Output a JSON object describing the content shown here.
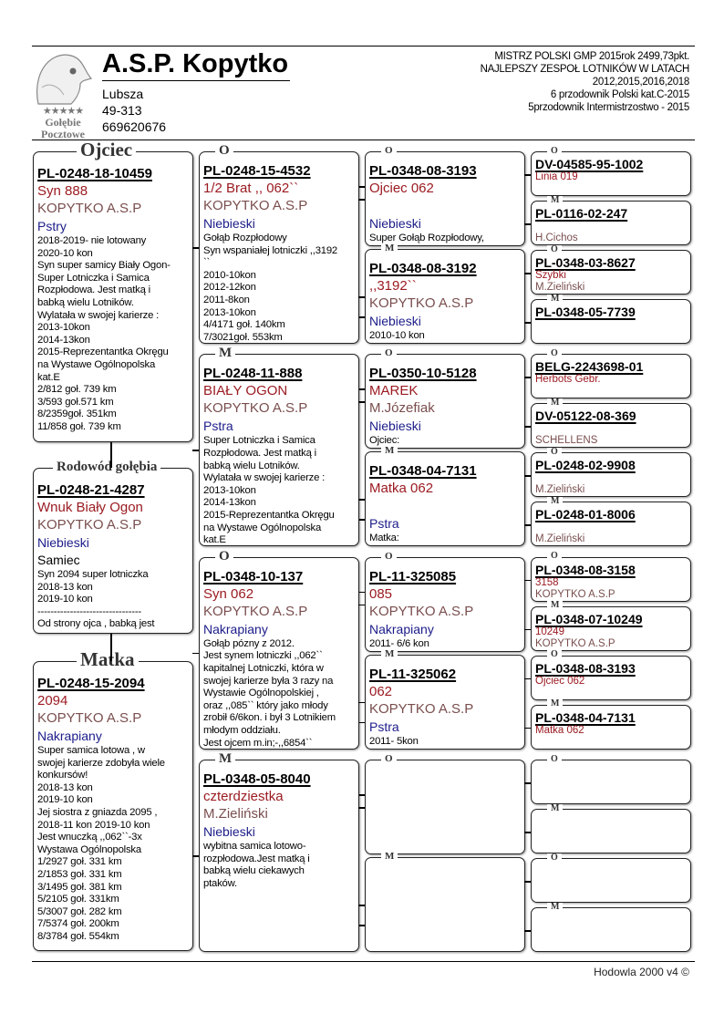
{
  "header": {
    "title": "A.S.P. Kopytko",
    "address": [
      "Lubsza",
      "49-313",
      "669620676"
    ],
    "achievements": [
      "MISTRZ POLSKI GMP 2015rok 2499,73pkt.",
      "NAJLEPSZY ZESPOŁ LOTNIKÓW W LATACH",
      "2012,2015,2016,2018",
      "6 przodownik Polski kat.C-2015",
      "5przodownik Intermistrzostwo - 2015"
    ]
  },
  "logo": {
    "stars": "★★★★★",
    "line1": "Gołębie",
    "line2": "Pocztowe"
  },
  "col1": [
    {
      "label": "Ojciec",
      "ring": "PL-0248-18-10459",
      "name": "Syn 888",
      "owner": "KOPYTKO A.S.P",
      "color": "Pstry",
      "notes": [
        "2018-2019- nie lotowany",
        "2020-10 kon",
        "Syn super samicy Biały Ogon-",
        "Super Lotniczka i Samica",
        "Rozpłodowa. Jest matką i",
        "babką wielu Lotników.",
        "Wylatała w swojej karierze :",
        "2013-10kon",
        "2014-13kon",
        "2015-Reprezentantka Okręgu",
        "na Wystawe Ogólnopolska",
        "kat.E",
        "2/812 goł. 739 km",
        "3/593 goł.571 km",
        "8/2359goł. 351km",
        "11/858 goł. 739 km"
      ]
    },
    {
      "label": "Rodowód gołębia",
      "ring": "PL-0248-21-4287",
      "name": "Wnuk Biały Ogon",
      "owner": "KOPYTKO A.S.P",
      "color": "Niebieski",
      "sex": "Samiec",
      "notes": [
        "Syn 2094 super lotniczka",
        "2018-13 kon",
        "2019-10 kon",
        "--------------------------------",
        "Od strony ojca , babką jest"
      ]
    },
    {
      "label": "Matka",
      "ring": "PL-0248-15-2094",
      "name": "2094",
      "owner": "KOPYTKO A.S.P",
      "color": "Nakrapiany",
      "notes": [
        "Super samica lotowa , w",
        "swojej karierze zdobyła  wiele",
        "konkursów!",
        "2018-13 kon",
        "2019-10 kon",
        "Jej siostra z gniazda 2095 ,",
        "2018-11 kon 2019-10 kon",
        "Jest wnuczką ,,062``-3x",
        "Wystawa Ogólnopolska",
        "1/2927 goł. 331 km",
        "2/1853 goł. 331 km",
        "3/1495 goł. 381 km",
        "5/2105 goł. 331km",
        "5/3007 goł. 282 km",
        "7/5374 goł. 200km",
        "8/3784 goł. 554km"
      ]
    }
  ],
  "col2": [
    {
      "label": "O",
      "ring": "PL-0248-15-4532",
      "name": "1/2 Brat ,, 062``",
      "owner": "KOPYTKO A.S.P",
      "color": "Niebieski",
      "notes": [
        "Gołąb Rozpłodowy",
        "Syn wspaniałej lotniczki ,,3192",
        "``",
        "2010-10kon",
        "2012-12kon",
        "2011-8kon",
        "2013-10kon",
        "4/4171 goł. 140km",
        "7/3021goł. 553km"
      ]
    },
    {
      "label": "M",
      "ring": "PL-0248-11-888",
      "name": "BIAŁY OGON",
      "owner": "KOPYTKO A.S.P",
      "color": "Pstra",
      "notes": [
        "Super Lotniczka i Samica",
        "Rozpłodowa. Jest matką i",
        "babką wielu Lotników.",
        "Wylatała w swojej karierze :",
        "2013-10kon",
        "2014-13kon",
        "2015-Reprezentantka Okręgu",
        "na Wystawe Ogólnopolska",
        "kat.E"
      ]
    },
    {
      "label": "O",
      "ring": "PL-0348-10-137",
      "name": "Syn 062",
      "owner": "KOPYTKO A.S.P",
      "color": "Nakrapiany",
      "notes": [
        "Gołąb pózny z 2012.",
        "Jest synem lotniczki ,,062``",
        "kapitalnej Lotniczki, która w",
        "swojej karierze była 3 razy na",
        "Wystawie Ogólnopolskiej ,",
        "oraz ,,085``  który jako młody",
        "zrobił 6/6kon. i był 3 Lotnikiem",
        "młodym oddziału.",
        "Jest ojcem m.in;-,,6854``"
      ]
    },
    {
      "label": "M",
      "ring": "PL-0348-05-8040",
      "name": "czterdziestka",
      "owner": "M.Zieliński",
      "color": "Niebieski",
      "notes": [
        "wybitna samica lotowo-",
        "rozpłodowa.Jest matką i",
        "babką wielu ciekawych",
        "ptaków."
      ]
    }
  ],
  "col3": [
    {
      "label": "O",
      "ring": "PL-0348-08-3193",
      "name": "Ojciec 062",
      "owner": "",
      "color": "Niebieski",
      "notes": [
        "Super Gołąb Rozpłodowy,"
      ]
    },
    {
      "label": "M",
      "ring": "PL-0348-08-3192",
      "name": ",,3192``",
      "owner": "KOPYTKO A.S.P",
      "color": "Niebieski",
      "notes": [
        "2010-10 kon"
      ]
    },
    {
      "label": "O",
      "ring": "PL-0350-10-5128",
      "name": "MAREK",
      "owner": "M.Józefiak",
      "color": "Niebieski",
      "notes": [
        "Ojciec:"
      ]
    },
    {
      "label": "M",
      "ring": "PL-0348-04-7131",
      "name": "Matka 062",
      "owner": "",
      "color": "Pstra",
      "notes": [
        "Matka:"
      ]
    },
    {
      "label": "O",
      "ring": "PL-11-325085",
      "name": "085",
      "owner": "KOPYTKO A.S.P",
      "color": "Nakrapiany",
      "notes": [
        "2011- 6/6 kon"
      ]
    },
    {
      "label": "M",
      "ring": "PL-11-325062",
      "name": "062",
      "owner": "KOPYTKO A.S.P",
      "color": "Pstra",
      "notes": [
        "2011- 5kon"
      ]
    },
    {
      "label": "O",
      "ring": "",
      "name": "",
      "owner": "",
      "color": "",
      "notes": []
    },
    {
      "label": "M",
      "ring": "",
      "name": "",
      "owner": "",
      "color": "",
      "notes": []
    }
  ],
  "col4": [
    {
      "label": "O",
      "ring": "DV-04585-95-1002",
      "name": "Linia 019",
      "owner": ""
    },
    {
      "label": "M",
      "ring": "PL-0116-02-247",
      "name": "",
      "owner": "H.Cichos"
    },
    {
      "label": "O",
      "ring": "PL-0348-03-8627",
      "name": "Szybki",
      "owner": "M.Zieliński"
    },
    {
      "label": "M",
      "ring": "PL-0348-05-7739",
      "name": "",
      "owner": ""
    },
    {
      "label": "O",
      "ring": "BELG-2243698-01",
      "name": "Herbots Gebr.",
      "owner": ""
    },
    {
      "label": "M",
      "ring": "DV-05122-08-369",
      "name": "",
      "owner": "SCHELLENS"
    },
    {
      "label": "O",
      "ring": "PL-0248-02-9908",
      "name": "",
      "owner": "M.Zieliński"
    },
    {
      "label": "M",
      "ring": "PL-0248-01-8006",
      "name": "",
      "owner": "M.Zieliński"
    },
    {
      "label": "O",
      "ring": "PL-0348-08-3158",
      "name": "3158",
      "owner": "KOPYTKO A.S.P"
    },
    {
      "label": "M",
      "ring": "PL-0348-07-10249",
      "name": "10249",
      "owner": "KOPYTKO A.S.P"
    },
    {
      "label": "O",
      "ring": "PL-0348-08-3193",
      "name": "Ojciec 062",
      "owner": ""
    },
    {
      "label": "M",
      "ring": "PL-0348-04-7131",
      "name": "Matka 062",
      "owner": ""
    },
    {
      "label": "O",
      "ring": "",
      "name": "",
      "owner": ""
    },
    {
      "label": "M",
      "ring": "",
      "name": "",
      "owner": ""
    },
    {
      "label": "O",
      "ring": "",
      "name": "",
      "owner": ""
    },
    {
      "label": "M",
      "ring": "",
      "name": "",
      "owner": ""
    }
  ],
  "footer": "Hodowla 2000 v4 ©"
}
